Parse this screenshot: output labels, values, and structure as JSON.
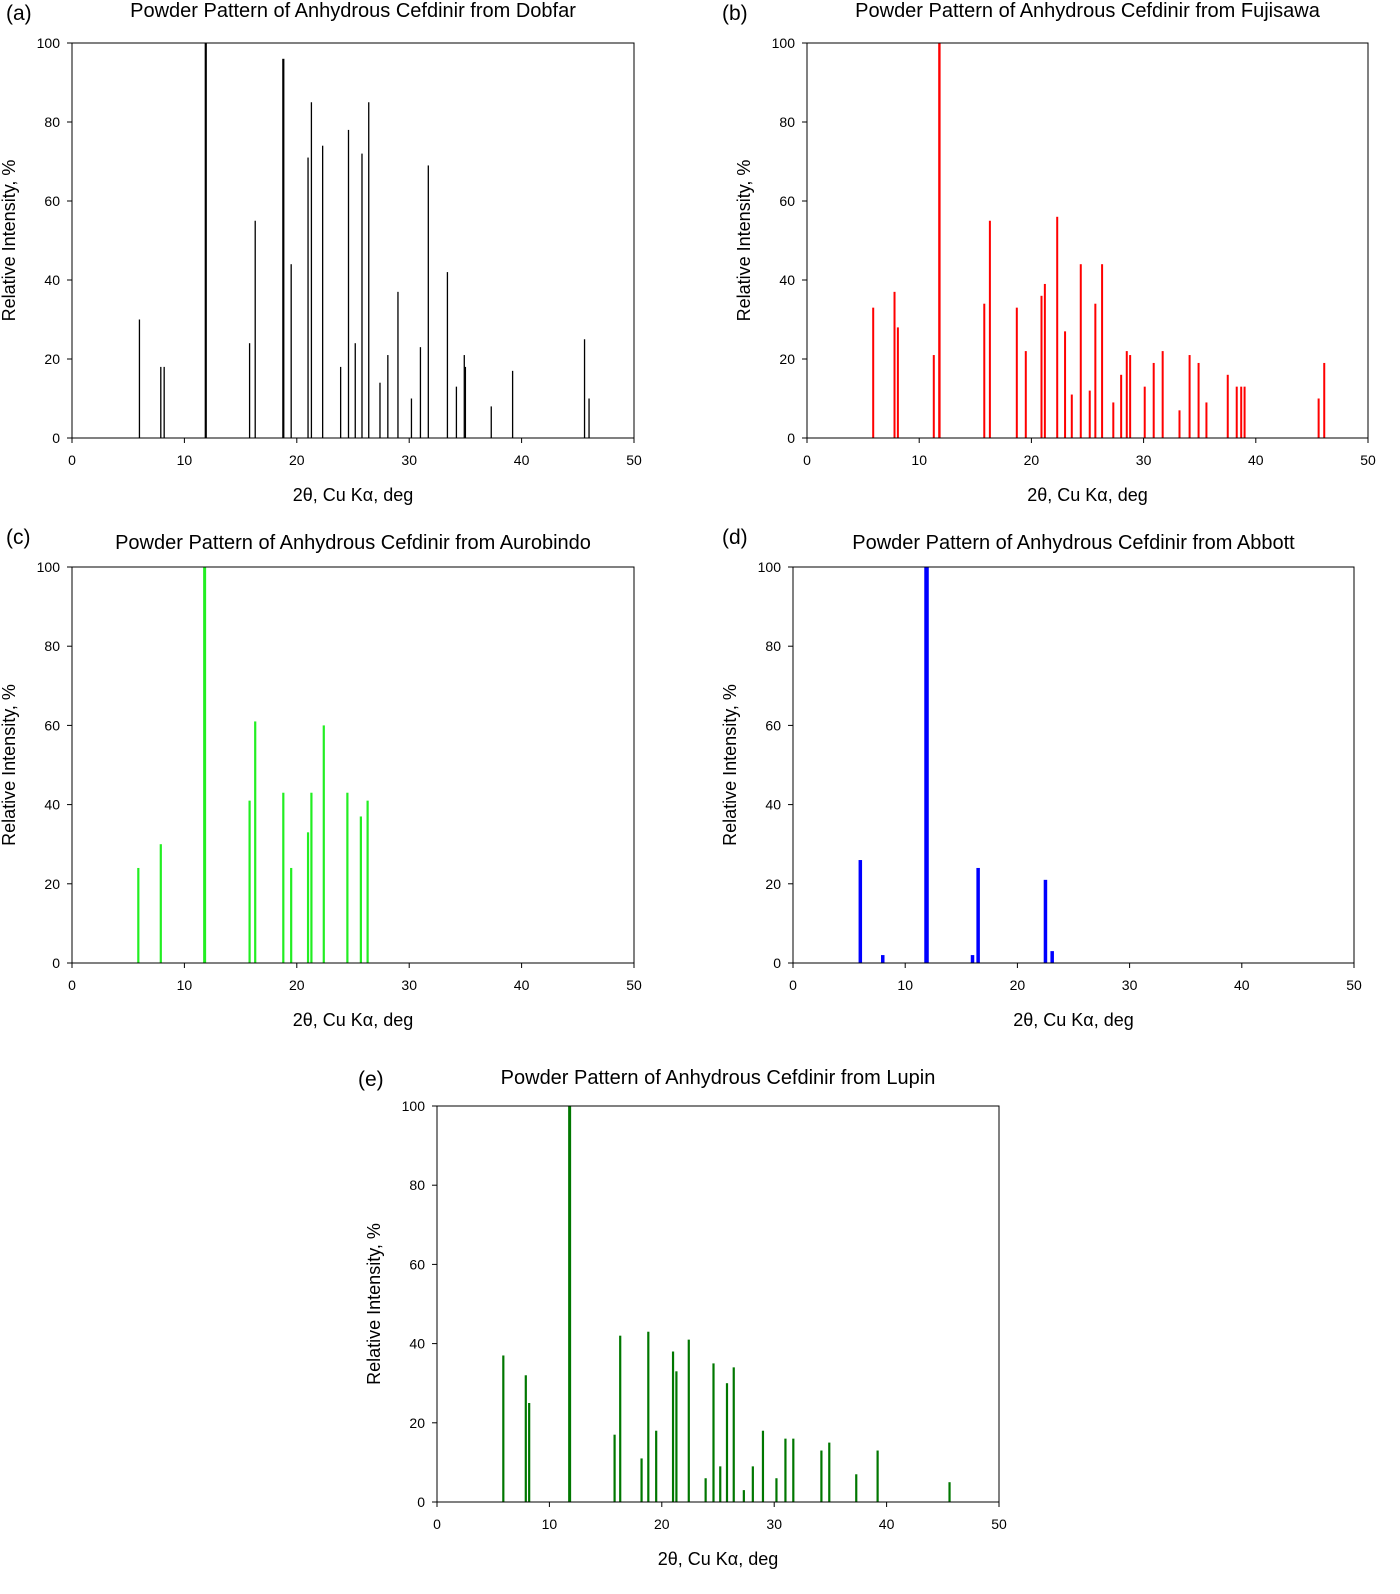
{
  "figure": {
    "description_label": "Five-panel figure of XRPD peak positions"
  },
  "chart_data": [
    {
      "panel": "(a)",
      "type": "bar",
      "title": "Powder Pattern of Anhydrous Cefdinir from Dobfar",
      "xlabel": "2θ, Cu Kα, deg",
      "ylabel": "Relative Intensity, %",
      "xlim": [
        0,
        50
      ],
      "ylim": [
        0,
        100
      ],
      "xticks": [
        0,
        10,
        20,
        30,
        40,
        50
      ],
      "yticks": [
        0,
        20,
        40,
        60,
        80,
        100
      ],
      "color": "#000000",
      "peaks": [
        {
          "x": 6.0,
          "y": 30
        },
        {
          "x": 7.9,
          "y": 18
        },
        {
          "x": 8.2,
          "y": 18
        },
        {
          "x": 11.9,
          "y": 100
        },
        {
          "x": 15.8,
          "y": 24
        },
        {
          "x": 16.3,
          "y": 55
        },
        {
          "x": 18.8,
          "y": 96
        },
        {
          "x": 19.5,
          "y": 44
        },
        {
          "x": 21.0,
          "y": 71
        },
        {
          "x": 21.3,
          "y": 85
        },
        {
          "x": 22.3,
          "y": 74
        },
        {
          "x": 23.9,
          "y": 18
        },
        {
          "x": 24.6,
          "y": 78
        },
        {
          "x": 25.2,
          "y": 24
        },
        {
          "x": 25.8,
          "y": 72
        },
        {
          "x": 26.4,
          "y": 85
        },
        {
          "x": 27.4,
          "y": 14
        },
        {
          "x": 28.1,
          "y": 21
        },
        {
          "x": 29.0,
          "y": 37
        },
        {
          "x": 30.2,
          "y": 10
        },
        {
          "x": 31.0,
          "y": 23
        },
        {
          "x": 31.7,
          "y": 69
        },
        {
          "x": 33.4,
          "y": 42
        },
        {
          "x": 34.2,
          "y": 13
        },
        {
          "x": 34.9,
          "y": 21
        },
        {
          "x": 35.0,
          "y": 18
        },
        {
          "x": 37.3,
          "y": 8
        },
        {
          "x": 39.2,
          "y": 17
        },
        {
          "x": 45.6,
          "y": 25
        },
        {
          "x": 46.0,
          "y": 10
        }
      ]
    },
    {
      "panel": "(b)",
      "type": "bar",
      "title": "Powder Pattern of Anhydrous Cefdinir from Fujisawa",
      "xlabel": "2θ, Cu Kα, deg",
      "ylabel": "Relative Intensity, %",
      "xlim": [
        0,
        50
      ],
      "ylim": [
        0,
        100
      ],
      "xticks": [
        0,
        10,
        20,
        30,
        40,
        50
      ],
      "yticks": [
        0,
        20,
        40,
        60,
        80,
        100
      ],
      "color": "#ff0000",
      "peaks": [
        {
          "x": 5.9,
          "y": 33
        },
        {
          "x": 7.8,
          "y": 37
        },
        {
          "x": 8.1,
          "y": 28
        },
        {
          "x": 11.3,
          "y": 21
        },
        {
          "x": 11.8,
          "y": 100
        },
        {
          "x": 15.8,
          "y": 34
        },
        {
          "x": 16.3,
          "y": 55
        },
        {
          "x": 18.7,
          "y": 33
        },
        {
          "x": 19.5,
          "y": 22
        },
        {
          "x": 20.9,
          "y": 36
        },
        {
          "x": 21.2,
          "y": 39
        },
        {
          "x": 22.3,
          "y": 56
        },
        {
          "x": 23.0,
          "y": 27
        },
        {
          "x": 23.6,
          "y": 11
        },
        {
          "x": 24.4,
          "y": 44
        },
        {
          "x": 25.2,
          "y": 12
        },
        {
          "x": 25.7,
          "y": 34
        },
        {
          "x": 26.3,
          "y": 44
        },
        {
          "x": 27.3,
          "y": 9
        },
        {
          "x": 28.0,
          "y": 16
        },
        {
          "x": 28.5,
          "y": 22
        },
        {
          "x": 28.8,
          "y": 21
        },
        {
          "x": 30.1,
          "y": 13
        },
        {
          "x": 30.9,
          "y": 19
        },
        {
          "x": 31.7,
          "y": 22
        },
        {
          "x": 33.2,
          "y": 7
        },
        {
          "x": 34.1,
          "y": 21
        },
        {
          "x": 34.9,
          "y": 19
        },
        {
          "x": 35.6,
          "y": 9
        },
        {
          "x": 37.5,
          "y": 16
        },
        {
          "x": 38.3,
          "y": 13
        },
        {
          "x": 38.7,
          "y": 13
        },
        {
          "x": 39.0,
          "y": 13
        },
        {
          "x": 45.6,
          "y": 10
        },
        {
          "x": 46.1,
          "y": 19
        }
      ]
    },
    {
      "panel": "(c)",
      "type": "bar",
      "title": "Powder Pattern of Anhydrous Cefdinir from Aurobindo",
      "xlabel": "2θ, Cu Kα, deg",
      "ylabel": "Relative Intensity, %",
      "xlim": [
        0,
        50
      ],
      "ylim": [
        0,
        100
      ],
      "xticks": [
        0,
        10,
        20,
        30,
        40,
        50
      ],
      "yticks": [
        0,
        20,
        40,
        60,
        80,
        100
      ],
      "color": "#22ee22",
      "peaks": [
        {
          "x": 5.9,
          "y": 24
        },
        {
          "x": 7.9,
          "y": 30
        },
        {
          "x": 11.8,
          "y": 100
        },
        {
          "x": 15.8,
          "y": 41
        },
        {
          "x": 16.3,
          "y": 61
        },
        {
          "x": 18.8,
          "y": 43
        },
        {
          "x": 19.5,
          "y": 24
        },
        {
          "x": 21.0,
          "y": 33
        },
        {
          "x": 21.3,
          "y": 43
        },
        {
          "x": 22.4,
          "y": 60
        },
        {
          "x": 24.5,
          "y": 43
        },
        {
          "x": 25.7,
          "y": 37
        },
        {
          "x": 26.3,
          "y": 41
        }
      ]
    },
    {
      "panel": "(d)",
      "type": "bar",
      "title": "Powder Pattern of Anhydrous Cefdinir from Abbott",
      "xlabel": "2θ, Cu Kα, deg",
      "ylabel": "Relative Intensity, %",
      "xlim": [
        0,
        50
      ],
      "ylim": [
        0,
        100
      ],
      "xticks": [
        0,
        10,
        20,
        30,
        40,
        50
      ],
      "yticks": [
        0,
        20,
        40,
        60,
        80,
        100
      ],
      "color": "#0000ff",
      "peaks": [
        {
          "x": 6.0,
          "y": 26
        },
        {
          "x": 8.0,
          "y": 2
        },
        {
          "x": 11.9,
          "y": 100
        },
        {
          "x": 16.0,
          "y": 2
        },
        {
          "x": 16.5,
          "y": 24
        },
        {
          "x": 22.5,
          "y": 21
        },
        {
          "x": 23.1,
          "y": 3
        }
      ]
    },
    {
      "panel": "(e)",
      "type": "bar",
      "title": "Powder Pattern of Anhydrous Cefdinir from Lupin",
      "xlabel": "2θ, Cu Kα, deg",
      "ylabel": "Relative Intensity, %",
      "xlim": [
        0,
        50
      ],
      "ylim": [
        0,
        100
      ],
      "xticks": [
        0,
        10,
        20,
        30,
        40,
        50
      ],
      "yticks": [
        0,
        20,
        40,
        60,
        80,
        100
      ],
      "color": "#007700",
      "peaks": [
        {
          "x": 5.9,
          "y": 37
        },
        {
          "x": 7.9,
          "y": 32
        },
        {
          "x": 8.2,
          "y": 25
        },
        {
          "x": 11.8,
          "y": 100
        },
        {
          "x": 15.8,
          "y": 17
        },
        {
          "x": 16.3,
          "y": 42
        },
        {
          "x": 18.2,
          "y": 11
        },
        {
          "x": 18.8,
          "y": 43
        },
        {
          "x": 19.5,
          "y": 18
        },
        {
          "x": 21.0,
          "y": 38
        },
        {
          "x": 21.3,
          "y": 33
        },
        {
          "x": 22.4,
          "y": 41
        },
        {
          "x": 23.9,
          "y": 6
        },
        {
          "x": 24.6,
          "y": 35
        },
        {
          "x": 25.2,
          "y": 9
        },
        {
          "x": 25.8,
          "y": 30
        },
        {
          "x": 26.4,
          "y": 34
        },
        {
          "x": 27.3,
          "y": 3
        },
        {
          "x": 28.1,
          "y": 9
        },
        {
          "x": 29.0,
          "y": 18
        },
        {
          "x": 30.2,
          "y": 6
        },
        {
          "x": 31.0,
          "y": 16
        },
        {
          "x": 31.7,
          "y": 16
        },
        {
          "x": 34.2,
          "y": 13
        },
        {
          "x": 34.9,
          "y": 15
        },
        {
          "x": 37.3,
          "y": 7
        },
        {
          "x": 39.2,
          "y": 13
        },
        {
          "x": 45.6,
          "y": 5
        }
      ]
    }
  ]
}
